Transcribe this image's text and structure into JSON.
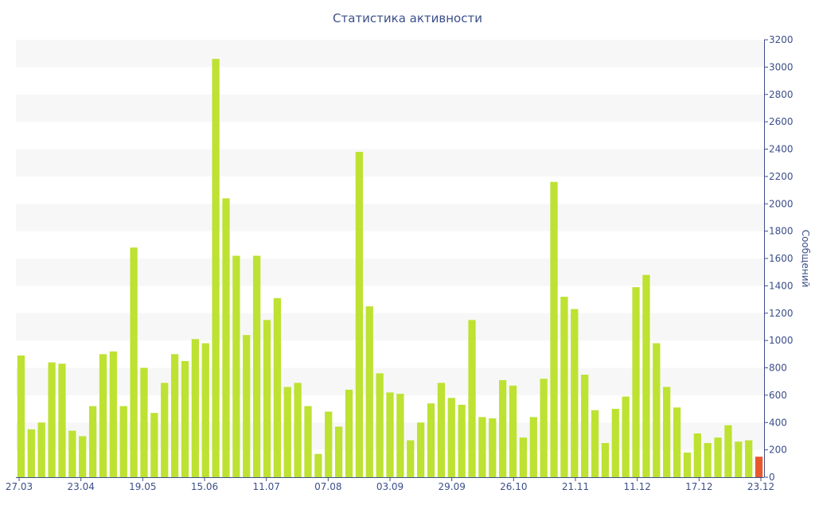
{
  "chart_data": {
    "type": "bar",
    "title": "Статистика активности",
    "xlabel": "",
    "ylabel": "Сообщений",
    "ylim": [
      0,
      3200
    ],
    "yticks": [
      0,
      200,
      400,
      600,
      800,
      1000,
      1200,
      1400,
      1600,
      1800,
      2000,
      2200,
      2400,
      2600,
      2800,
      3000,
      3200
    ],
    "x_tick_labels": [
      "27.03",
      "23.04",
      "19.05",
      "15.06",
      "11.07",
      "07.08",
      "03.09",
      "29.09",
      "26.10",
      "21.11",
      "11.12",
      "17.12",
      "23.12"
    ],
    "values": [
      890,
      350,
      400,
      840,
      830,
      340,
      300,
      520,
      900,
      920,
      520,
      1680,
      800,
      470,
      690,
      900,
      850,
      1010,
      980,
      3060,
      2040,
      1620,
      1040,
      1620,
      1150,
      1310,
      660,
      690,
      520,
      170,
      480,
      370,
      640,
      2380,
      1250,
      760,
      620,
      610,
      270,
      400,
      540,
      690,
      580,
      530,
      1150,
      440,
      430,
      710,
      670,
      290,
      440,
      720,
      2160,
      1320,
      1230,
      750,
      490,
      250,
      500,
      590,
      1390,
      1480,
      980,
      660,
      510,
      180,
      320,
      250,
      290,
      380,
      260,
      270,
      150
    ],
    "grid": "horizontal bands",
    "y_axis_position": "right",
    "colors": {
      "bar": "#bde232",
      "last_bar": "#e8582e",
      "band": "#f7f7f7",
      "text": "#3c4f8a",
      "axis": "#3c4f8a"
    }
  }
}
